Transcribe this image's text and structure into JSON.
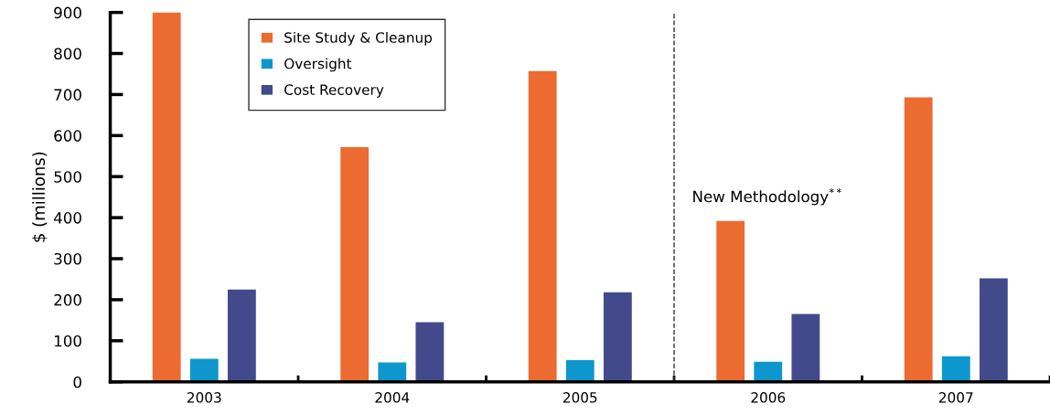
{
  "chart_data": {
    "type": "bar",
    "ylabel": "$ (millions)",
    "categories": [
      "2003",
      "2004",
      "2005",
      "2006",
      "2007"
    ],
    "series": [
      {
        "name": "Site Study & Cleanup",
        "color": "#ec6b30",
        "values": [
          900,
          572,
          757,
          392,
          693
        ]
      },
      {
        "name": "Oversight",
        "color": "#0d97cc",
        "values": [
          56,
          47,
          53,
          49,
          62
        ]
      },
      {
        "name": "Cost Recovery",
        "color": "#434a8c",
        "values": [
          225,
          145,
          218,
          165,
          252
        ]
      }
    ],
    "ylim": [
      0,
      900
    ],
    "yticks": [
      0,
      100,
      200,
      300,
      400,
      500,
      600,
      700,
      800,
      900
    ],
    "grid": false,
    "legend": "top left",
    "annotations": [
      "New Methodology$^{**}$"
    ]
  }
}
